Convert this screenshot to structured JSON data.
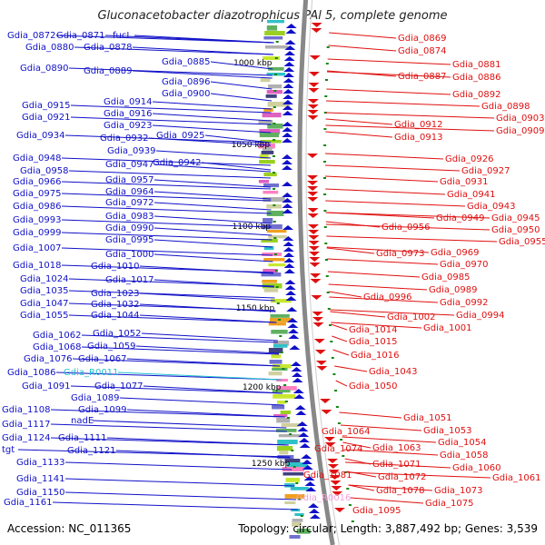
{
  "title": "Gluconacetobacter diazotrophicus PAl 5, complete genome",
  "footer": {
    "accession_label": "Accession: ",
    "accession": "NC_011365",
    "summary": "Topology: circular; Length: 3,887,492 bp; Genes: 3,539"
  },
  "colors": {
    "forward_strand": "#1010c8",
    "reverse_strand": "#e01010",
    "rna_left": "#22c0d0",
    "rna_right": "#f0a0d8",
    "backbone": "#888888",
    "tick": "#118811"
  },
  "scale_ticks": [
    "1000 kbp",
    "1050 kbp",
    "1100 kbp",
    "1150 kbp",
    "1200 kbp",
    "1250 kbp"
  ],
  "left_genes": [
    "Gdia_0872",
    "Gdia_0871",
    "fucI",
    "Gdia_0880",
    "Gdia_0878",
    "Gdia_0885",
    "Gdia_0890",
    "Gdia_0889",
    "Gdia_0896",
    "Gdia_0900",
    "Gdia_0915",
    "Gdia_0914",
    "Gdia_0916",
    "Gdia_0921",
    "Gdia_0923",
    "Gdia_0934",
    "Gdia_0932",
    "Gdia_0925",
    "Gdia_0939",
    "Gdia_0948",
    "Gdia_0947",
    "Gdia_0942",
    "Gdia_0958",
    "Gdia_0957",
    "Gdia_0966",
    "Gdia_0964",
    "Gdia_0975",
    "Gdia_0972",
    "Gdia_0986",
    "Gdia_0983",
    "Gdia_0993",
    "Gdia_0990",
    "Gdia_0999",
    "Gdia_0995",
    "Gdia_1007",
    "Gdia_1000",
    "Gdia_1018",
    "Gdia_1010",
    "Gdia_1024",
    "Gdia_1017",
    "Gdia_1035",
    "Gdia_1023",
    "Gdia_1047",
    "Gdia_1032",
    "Gdia_1055",
    "Gdia_1044",
    "Gdia_1062",
    "Gdia_1052",
    "Gdia_1068",
    "Gdia_1059",
    "Gdia_1076",
    "Gdia_1067",
    "Gdia_1086",
    "Gdia_R0011",
    "Gdia_1091",
    "Gdia_1077",
    "Gdia_1089",
    "Gdia_1108",
    "Gdia_1099",
    "Gdia_1117",
    "nadE",
    "Gdia_1124",
    "Gdia_1111",
    "tgt",
    "Gdia_1121",
    "Gdia_1133",
    "Gdia_1141",
    "Gdia_1150",
    "Gdia_1161"
  ],
  "right_genes": [
    "Gdia_0869",
    "Gdia_0874",
    "Gdia_0881",
    "Gdia_0887",
    "Gdia_0886",
    "Gdia_0892",
    "Gdia_0898",
    "Gdia_0903",
    "Gdia_0912",
    "Gdia_0909",
    "Gdia_0913",
    "Gdia_0926",
    "Gdia_0927",
    "Gdia_0931",
    "Gdia_0941",
    "Gdia_0943",
    "Gdia_0949",
    "Gdia_0945",
    "Gdia_0956",
    "Gdia_0950",
    "Gdia_0955",
    "Gdia_0973",
    "Gdia_0969",
    "Gdia_0970",
    "Gdia_0985",
    "Gdia_0989",
    "Gdia_0996",
    "Gdia_0992",
    "Gdia_0994",
    "Gdia_1002",
    "Gdia_1014",
    "Gdia_1001",
    "Gdia_1015",
    "Gdia_1016",
    "Gdia_1043",
    "Gdia_1050",
    "Gdia_1051",
    "Gdia_1053",
    "Gdia_1064",
    "Gdia_1054",
    "Gdia_1063",
    "Gdia_1074",
    "Gdia_1058",
    "Gdia_1060",
    "Gdia_1071",
    "Gdia_1061",
    "Gdia_1072",
    "Gdia_1081",
    "Gdia_1073",
    "Gdia_1078",
    "Gdia_1075",
    "Gdia_R0016",
    "Gdia_1095"
  ]
}
